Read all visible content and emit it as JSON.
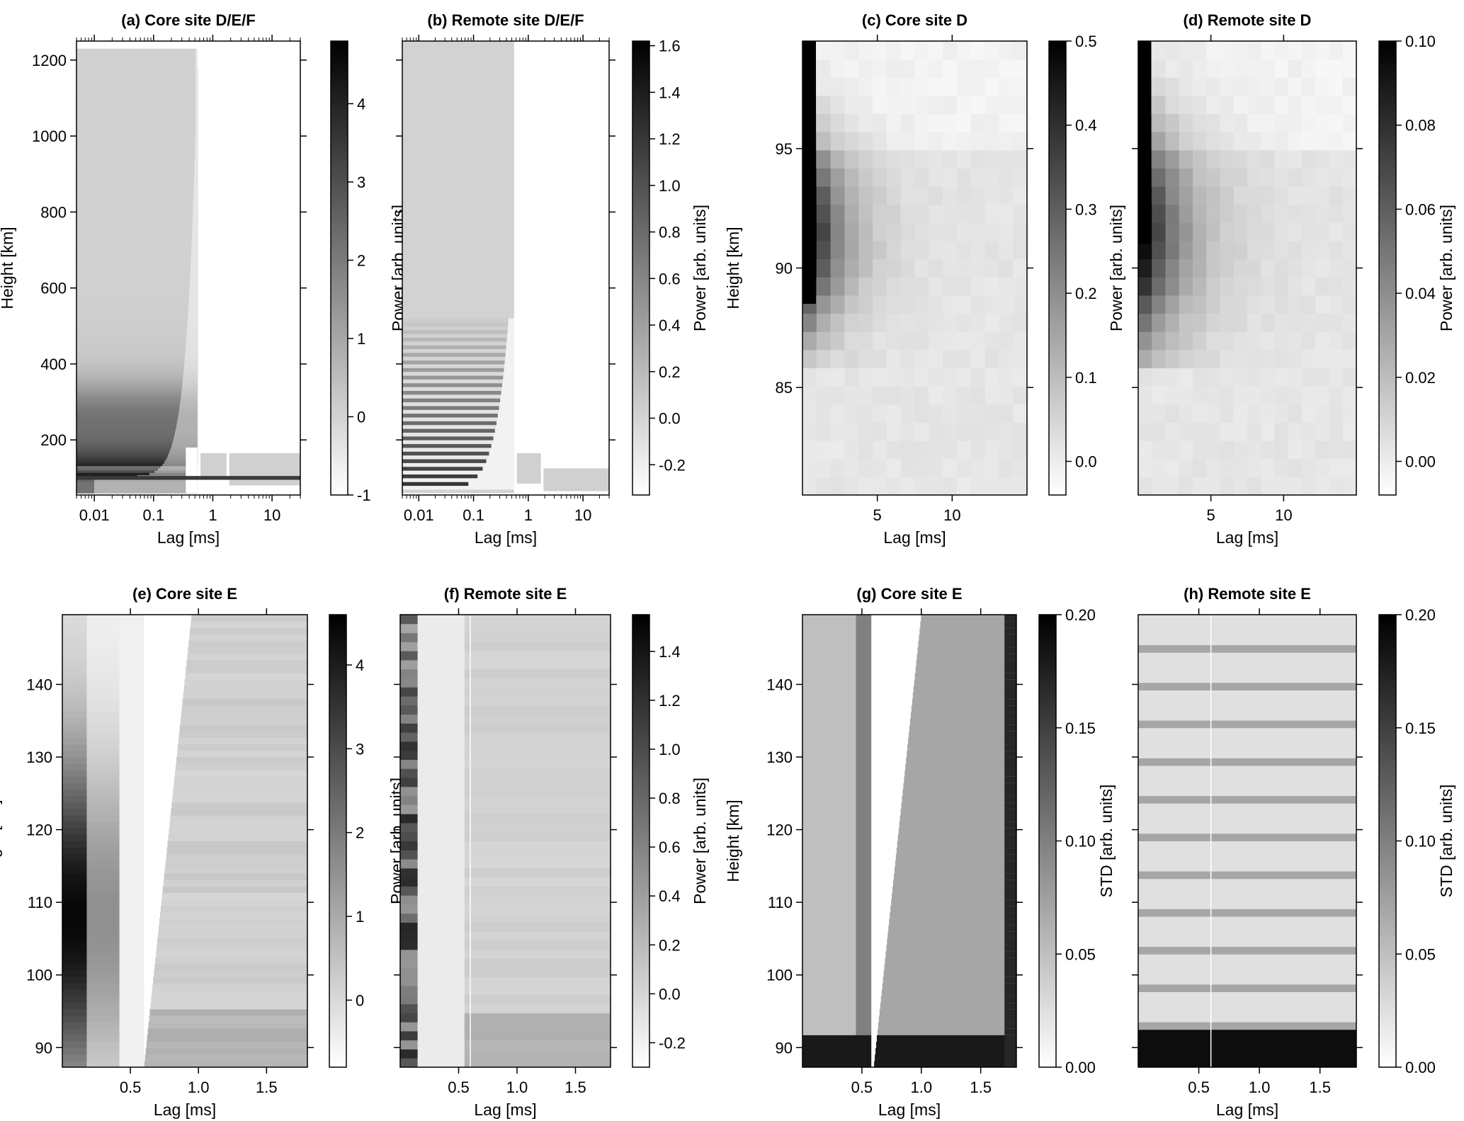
{
  "figure": {
    "panels": [
      {
        "id": "a",
        "title": "(a) Core site D/E/F",
        "xlabel": "Lag [ms]",
        "ylabel": "Height [km]",
        "xaxis": {
          "scale": "log",
          "range": [
            0.005,
            30
          ],
          "ticks": [
            {
              "v": 0.01,
              "label": "0.01"
            },
            {
              "v": 0.1,
              "label": "0.1"
            },
            {
              "v": 1,
              "label": "1"
            },
            {
              "v": 10,
              "label": "10"
            }
          ]
        },
        "yaxis": {
          "range": [
            55,
            1250
          ],
          "ticks": [
            {
              "v": 200,
              "label": "200"
            },
            {
              "v": 400,
              "label": "400"
            },
            {
              "v": 600,
              "label": "600"
            },
            {
              "v": 800,
              "label": "800"
            },
            {
              "v": 1000,
              "label": "1000"
            },
            {
              "v": 1200,
              "label": "1200"
            }
          ]
        },
        "colorbar": {
          "label": "Power [arb. units]",
          "range": [
            -1,
            4.8
          ],
          "ticks": [
            {
              "v": -1,
              "label": "-1"
            },
            {
              "v": 0,
              "label": "0"
            },
            {
              "v": 1,
              "label": "1"
            },
            {
              "v": 2,
              "label": "2"
            },
            {
              "v": 3,
              "label": "3"
            },
            {
              "v": 4,
              "label": "4"
            }
          ]
        }
      },
      {
        "id": "b",
        "title": "(b) Remote site D/E/F",
        "xlabel": "Lag [ms]",
        "ylabel": "",
        "xaxis": {
          "scale": "log",
          "range": [
            0.005,
            30
          ],
          "ticks": [
            {
              "v": 0.01,
              "label": "0.01"
            },
            {
              "v": 0.1,
              "label": "0.1"
            },
            {
              "v": 1,
              "label": "1"
            },
            {
              "v": 10,
              "label": "10"
            }
          ]
        },
        "yaxis": {
          "range": [
            55,
            1250
          ],
          "ticks": []
        },
        "colorbar": {
          "label": "Power [arb. units]",
          "range": [
            -0.33,
            1.62
          ],
          "ticks": [
            {
              "v": -0.2,
              "label": "-0.2"
            },
            {
              "v": 0,
              "label": "0.0"
            },
            {
              "v": 0.2,
              "label": "0.2"
            },
            {
              "v": 0.4,
              "label": "0.4"
            },
            {
              "v": 0.6,
              "label": "0.6"
            },
            {
              "v": 0.8,
              "label": "0.8"
            },
            {
              "v": 1.0,
              "label": "1.0"
            },
            {
              "v": 1.2,
              "label": "1.2"
            },
            {
              "v": 1.4,
              "label": "1.4"
            },
            {
              "v": 1.6,
              "label": "1.6"
            }
          ]
        }
      },
      {
        "id": "c",
        "title": "(c) Core site D",
        "xlabel": "Lag [ms]",
        "ylabel": "Height [km]",
        "xaxis": {
          "scale": "linear",
          "range": [
            0,
            15
          ],
          "ticks": [
            {
              "v": 5,
              "label": "5"
            },
            {
              "v": 10,
              "label": "10"
            }
          ]
        },
        "yaxis": {
          "range": [
            80.5,
            99.5
          ],
          "ticks": [
            {
              "v": 85,
              "label": "85"
            },
            {
              "v": 90,
              "label": "90"
            },
            {
              "v": 95,
              "label": "95"
            }
          ]
        },
        "colorbar": {
          "label": "Power [arb. units]",
          "range": [
            -0.04,
            0.5
          ],
          "ticks": [
            {
              "v": 0,
              "label": "0.0"
            },
            {
              "v": 0.1,
              "label": "0.1"
            },
            {
              "v": 0.2,
              "label": "0.2"
            },
            {
              "v": 0.3,
              "label": "0.3"
            },
            {
              "v": 0.4,
              "label": "0.4"
            },
            {
              "v": 0.5,
              "label": "0.5"
            }
          ]
        }
      },
      {
        "id": "d",
        "title": "(d) Remote site D",
        "xlabel": "Lag [ms]",
        "ylabel": "",
        "xaxis": {
          "scale": "linear",
          "range": [
            0,
            15
          ],
          "ticks": [
            {
              "v": 5,
              "label": "5"
            },
            {
              "v": 10,
              "label": "10"
            }
          ]
        },
        "yaxis": {
          "range": [
            80.5,
            99.5
          ],
          "ticks": []
        },
        "colorbar": {
          "label": "Power [arb. units]",
          "range": [
            -0.008,
            0.1
          ],
          "ticks": [
            {
              "v": 0,
              "label": "0.00"
            },
            {
              "v": 0.02,
              "label": "0.02"
            },
            {
              "v": 0.04,
              "label": "0.04"
            },
            {
              "v": 0.06,
              "label": "0.06"
            },
            {
              "v": 0.08,
              "label": "0.08"
            },
            {
              "v": 0.1,
              "label": "0.10"
            }
          ]
        }
      },
      {
        "id": "e",
        "title": "(e) Core site E",
        "xlabel": "Lag [ms]",
        "ylabel": "Height [km]",
        "xaxis": {
          "scale": "linear",
          "range": [
            0,
            1.8
          ],
          "ticks": [
            {
              "v": 0.5,
              "label": "0.5"
            },
            {
              "v": 1.0,
              "label": "1.0"
            },
            {
              "v": 1.5,
              "label": "1.5"
            }
          ]
        },
        "yaxis": {
          "range": [
            87.3,
            149.6
          ],
          "ticks": [
            {
              "v": 90,
              "label": "90"
            },
            {
              "v": 100,
              "label": "100"
            },
            {
              "v": 110,
              "label": "110"
            },
            {
              "v": 120,
              "label": "120"
            },
            {
              "v": 130,
              "label": "130"
            },
            {
              "v": 140,
              "label": "140"
            }
          ]
        },
        "colorbar": {
          "label": "Power [arb. units]",
          "range": [
            -0.8,
            4.6
          ],
          "ticks": [
            {
              "v": 0,
              "label": "0"
            },
            {
              "v": 1,
              "label": "1"
            },
            {
              "v": 2,
              "label": "2"
            },
            {
              "v": 3,
              "label": "3"
            },
            {
              "v": 4,
              "label": "4"
            }
          ]
        }
      },
      {
        "id": "f",
        "title": "(f) Remote site E",
        "xlabel": "Lag [ms]",
        "ylabel": "",
        "xaxis": {
          "scale": "linear",
          "range": [
            0,
            1.8
          ],
          "ticks": [
            {
              "v": 0.5,
              "label": "0.5"
            },
            {
              "v": 1.0,
              "label": "1.0"
            },
            {
              "v": 1.5,
              "label": "1.5"
            }
          ]
        },
        "yaxis": {
          "range": [
            87.3,
            149.6
          ],
          "ticks": []
        },
        "colorbar": {
          "label": "Power [arb. units]",
          "range": [
            -0.3,
            1.55
          ],
          "ticks": [
            {
              "v": -0.2,
              "label": "-0.2"
            },
            {
              "v": 0,
              "label": "0.0"
            },
            {
              "v": 0.2,
              "label": "0.2"
            },
            {
              "v": 0.4,
              "label": "0.4"
            },
            {
              "v": 0.6,
              "label": "0.6"
            },
            {
              "v": 0.8,
              "label": "0.8"
            },
            {
              "v": 1.0,
              "label": "1.0"
            },
            {
              "v": 1.2,
              "label": "1.2"
            },
            {
              "v": 1.4,
              "label": "1.4"
            }
          ]
        }
      },
      {
        "id": "g",
        "title": "(g) Core site E",
        "xlabel": "Lag [ms]",
        "ylabel": "Height [km]",
        "xaxis": {
          "scale": "linear",
          "range": [
            0,
            1.8
          ],
          "ticks": [
            {
              "v": 0.5,
              "label": "0.5"
            },
            {
              "v": 1.0,
              "label": "1.0"
            },
            {
              "v": 1.5,
              "label": "1.5"
            }
          ]
        },
        "yaxis": {
          "range": [
            87.3,
            149.6
          ],
          "ticks": [
            {
              "v": 90,
              "label": "90"
            },
            {
              "v": 100,
              "label": "100"
            },
            {
              "v": 110,
              "label": "110"
            },
            {
              "v": 120,
              "label": "120"
            },
            {
              "v": 130,
              "label": "130"
            },
            {
              "v": 140,
              "label": "140"
            }
          ]
        },
        "colorbar": {
          "label": "STD [arb. units]",
          "range": [
            0,
            0.2
          ],
          "ticks": [
            {
              "v": 0,
              "label": "0.00"
            },
            {
              "v": 0.05,
              "label": "0.05"
            },
            {
              "v": 0.1,
              "label": "0.10"
            },
            {
              "v": 0.15,
              "label": "0.15"
            },
            {
              "v": 0.2,
              "label": "0.20"
            }
          ]
        }
      },
      {
        "id": "h",
        "title": "(h) Remote site E",
        "xlabel": "Lag [ms]",
        "ylabel": "",
        "xaxis": {
          "scale": "linear",
          "range": [
            0,
            1.8
          ],
          "ticks": [
            {
              "v": 0.5,
              "label": "0.5"
            },
            {
              "v": 1.0,
              "label": "1.0"
            },
            {
              "v": 1.5,
              "label": "1.5"
            }
          ]
        },
        "yaxis": {
          "range": [
            87.3,
            149.6
          ],
          "ticks": []
        },
        "colorbar": {
          "label": "STD [arb. units]",
          "range": [
            0,
            0.2
          ],
          "ticks": [
            {
              "v": 0,
              "label": "0.00"
            },
            {
              "v": 0.05,
              "label": "0.05"
            },
            {
              "v": 0.1,
              "label": "0.10"
            },
            {
              "v": 0.15,
              "label": "0.15"
            },
            {
              "v": 0.2,
              "label": "0.20"
            }
          ]
        }
      }
    ]
  },
  "chart_data": [
    {
      "type": "heatmap",
      "title": "(a) Core site D/E/F",
      "xlabel": "Lag [ms]",
      "ylabel": "Height [km]",
      "x_scale": "log",
      "xlim": [
        0.005,
        30
      ],
      "ylim": [
        55,
        1250
      ],
      "colorbar_label": "Power [arb. units]",
      "clim": [
        -1,
        4.8
      ]
    },
    {
      "type": "heatmap",
      "title": "(b) Remote site D/E/F",
      "xlabel": "Lag [ms]",
      "ylabel": "",
      "x_scale": "log",
      "xlim": [
        0.005,
        30
      ],
      "ylim": [
        55,
        1250
      ],
      "colorbar_label": "Power [arb. units]",
      "clim": [
        -0.33,
        1.62
      ]
    },
    {
      "type": "heatmap",
      "title": "(c) Core site D",
      "xlabel": "Lag [ms]",
      "ylabel": "Height [km]",
      "xlim": [
        0,
        15
      ],
      "ylim": [
        80.5,
        99.5
      ],
      "colorbar_label": "Power [arb. units]",
      "clim": [
        -0.04,
        0.5
      ]
    },
    {
      "type": "heatmap",
      "title": "(d) Remote site D",
      "xlabel": "Lag [ms]",
      "ylabel": "",
      "xlim": [
        0,
        15
      ],
      "ylim": [
        80.5,
        99.5
      ],
      "colorbar_label": "Power [arb. units]",
      "clim": [
        -0.008,
        0.1
      ]
    },
    {
      "type": "heatmap",
      "title": "(e) Core site E",
      "xlabel": "Lag [ms]",
      "ylabel": "Height [km]",
      "xlim": [
        0,
        1.8
      ],
      "ylim": [
        87.3,
        149.6
      ],
      "colorbar_label": "Power [arb. units]",
      "clim": [
        -0.8,
        4.6
      ]
    },
    {
      "type": "heatmap",
      "title": "(f) Remote site E",
      "xlabel": "Lag [ms]",
      "ylabel": "",
      "xlim": [
        0,
        1.8
      ],
      "ylim": [
        87.3,
        149.6
      ],
      "colorbar_label": "Power [arb. units]",
      "clim": [
        -0.3,
        1.55
      ]
    },
    {
      "type": "heatmap",
      "title": "(g) Core site E",
      "xlabel": "Lag [ms]",
      "ylabel": "Height [km]",
      "xlim": [
        0,
        1.8
      ],
      "ylim": [
        87.3,
        149.6
      ],
      "colorbar_label": "STD [arb. units]",
      "clim": [
        0,
        0.2
      ]
    },
    {
      "type": "heatmap",
      "title": "(h) Remote site E",
      "xlabel": "Lag [ms]",
      "ylabel": "",
      "xlim": [
        0,
        1.8
      ],
      "ylim": [
        87.3,
        149.6
      ],
      "colorbar_label": "STD [arb. units]",
      "clim": [
        0,
        0.2
      ]
    }
  ]
}
